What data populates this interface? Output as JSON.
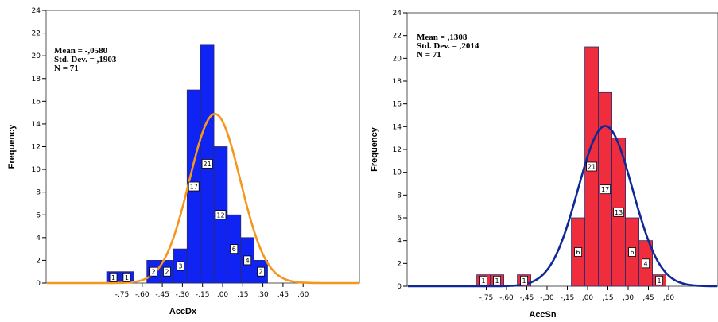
{
  "chart_data": [
    {
      "type": "bar",
      "xlabel": "AccDx",
      "ylabel": "Frequency",
      "ylim": [
        0,
        24
      ],
      "yticks": [
        "0",
        "2",
        "4",
        "6",
        "8",
        "10",
        "12",
        "14",
        "16",
        "18",
        "20",
        "22",
        "24"
      ],
      "xticks": [
        "-,75",
        "-,60",
        "-,45",
        "-,30",
        "-,15",
        ",00",
        ",15",
        ",30",
        ",45",
        ",60"
      ],
      "xtick_values": [
        -0.75,
        -0.6,
        -0.45,
        -0.3,
        -0.15,
        0.0,
        0.15,
        0.3,
        0.45,
        0.6
      ],
      "bin_width": 0.1,
      "bins": [
        {
          "left": -0.865,
          "count": 1,
          "label": "1"
        },
        {
          "left": -0.765,
          "count": 1,
          "label": "1"
        },
        {
          "left": -0.565,
          "count": 2,
          "label": "2"
        },
        {
          "left": -0.465,
          "count": 2,
          "label": "2"
        },
        {
          "left": -0.365,
          "count": 3,
          "label": "3"
        },
        {
          "left": -0.265,
          "count": 17,
          "label": "17"
        },
        {
          "left": -0.165,
          "count": 21,
          "label": "21"
        },
        {
          "left": -0.065,
          "count": 12,
          "label": "12"
        },
        {
          "left": 0.035,
          "count": 6,
          "label": "6"
        },
        {
          "left": 0.135,
          "count": 4,
          "label": "4"
        },
        {
          "left": 0.235,
          "count": 2,
          "label": "2"
        }
      ],
      "stats": [
        "Mean = -,0580",
        "Std. Dev. = ,1903",
        "N = 71"
      ],
      "mean": -0.058,
      "sd": 0.1903,
      "n": 71,
      "bar_color": "#0f23f2",
      "curve_color": "#f5961e"
    },
    {
      "type": "bar",
      "xlabel": "AccSn",
      "ylabel": "Frequency",
      "ylim": [
        0,
        24
      ],
      "yticks": [
        "0",
        "2",
        "4",
        "6",
        "8",
        "10",
        "12",
        "14",
        "16",
        "18",
        "20",
        "22",
        "24"
      ],
      "xticks": [
        "-,75",
        "-,60",
        "-,45",
        "-,30",
        "-,15",
        ",00",
        ",15",
        ",30",
        ",45",
        ",60"
      ],
      "xtick_values": [
        -0.75,
        -0.6,
        -0.45,
        -0.3,
        -0.15,
        0.0,
        0.15,
        0.3,
        0.45,
        0.6
      ],
      "bin_width": 0.1,
      "bins": [
        {
          "left": -0.82,
          "count": 1,
          "label": "1"
        },
        {
          "left": -0.72,
          "count": 1,
          "label": "1"
        },
        {
          "left": -0.52,
          "count": 1,
          "label": "1"
        },
        {
          "left": -0.12,
          "count": 6,
          "label": "6"
        },
        {
          "left": -0.02,
          "count": 21,
          "label": "21"
        },
        {
          "left": 0.08,
          "count": 17,
          "label": "17"
        },
        {
          "left": 0.18,
          "count": 13,
          "label": "13"
        },
        {
          "left": 0.28,
          "count": 6,
          "label": "6"
        },
        {
          "left": 0.38,
          "count": 4,
          "label": "4"
        },
        {
          "left": 0.48,
          "count": 1,
          "label": "1"
        }
      ],
      "stats": [
        "Mean = ,1308",
        "Std. Dev. = ,2014",
        "N = 71"
      ],
      "mean": 0.1308,
      "sd": 0.2014,
      "n": 71,
      "bar_color": "#f02d3c",
      "curve_color": "#0f2896"
    }
  ]
}
